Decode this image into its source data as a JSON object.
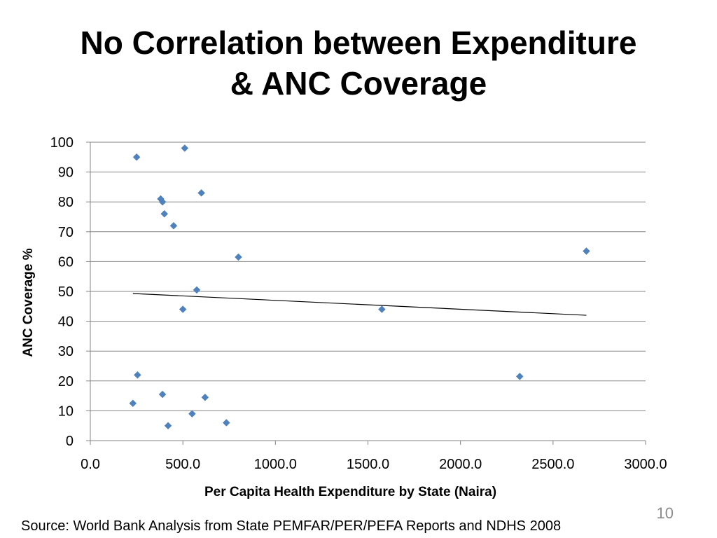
{
  "slide": {
    "title_line1": "No Correlation between Expenditure",
    "title_line2": "& ANC Coverage",
    "source": "Source: World Bank Analysis from State PEMFAR/PER/PEFA Reports and NDHS 2008",
    "page_number": "10"
  },
  "colors": {
    "marker": "#4f81bd",
    "gridline": "#868686",
    "trendline": "#000000",
    "axis": "#868686"
  },
  "chart_data": {
    "type": "scatter",
    "title": "",
    "xlabel": "Per Capita Health Expenditure by State (Naira)",
    "ylabel": "ANC Coverage %",
    "xlim": [
      0,
      3000
    ],
    "ylim": [
      0,
      100
    ],
    "x_ticks": [
      0,
      500,
      1000,
      1500,
      2000,
      2500,
      3000
    ],
    "x_tick_labels": [
      "0.0",
      "500.0",
      "1000.0",
      "1500.0",
      "2000.0",
      "2500.0",
      "3000.0"
    ],
    "y_ticks": [
      0,
      10,
      20,
      30,
      40,
      50,
      60,
      70,
      80,
      90,
      100
    ],
    "y_tick_labels": [
      "0",
      "10",
      "20",
      "30",
      "40",
      "50",
      "60",
      "70",
      "80",
      "90",
      "100"
    ],
    "grid": true,
    "legend": "none",
    "marker": "diamond",
    "points": [
      {
        "x": 250,
        "y": 95
      },
      {
        "x": 510,
        "y": 98
      },
      {
        "x": 380,
        "y": 81
      },
      {
        "x": 390,
        "y": 80
      },
      {
        "x": 400,
        "y": 76
      },
      {
        "x": 600,
        "y": 83
      },
      {
        "x": 450,
        "y": 72
      },
      {
        "x": 800,
        "y": 61.5
      },
      {
        "x": 575,
        "y": 50.5
      },
      {
        "x": 500,
        "y": 44
      },
      {
        "x": 1575,
        "y": 44
      },
      {
        "x": 2680,
        "y": 63.5
      },
      {
        "x": 255,
        "y": 22
      },
      {
        "x": 2320,
        "y": 21.5
      },
      {
        "x": 390,
        "y": 15.5
      },
      {
        "x": 620,
        "y": 14.5
      },
      {
        "x": 230,
        "y": 12.5
      },
      {
        "x": 550,
        "y": 9
      },
      {
        "x": 735,
        "y": 6
      },
      {
        "x": 420,
        "y": 5
      }
    ],
    "trendline": {
      "x": [
        230,
        2680
      ],
      "y": [
        49.3,
        42
      ]
    }
  }
}
